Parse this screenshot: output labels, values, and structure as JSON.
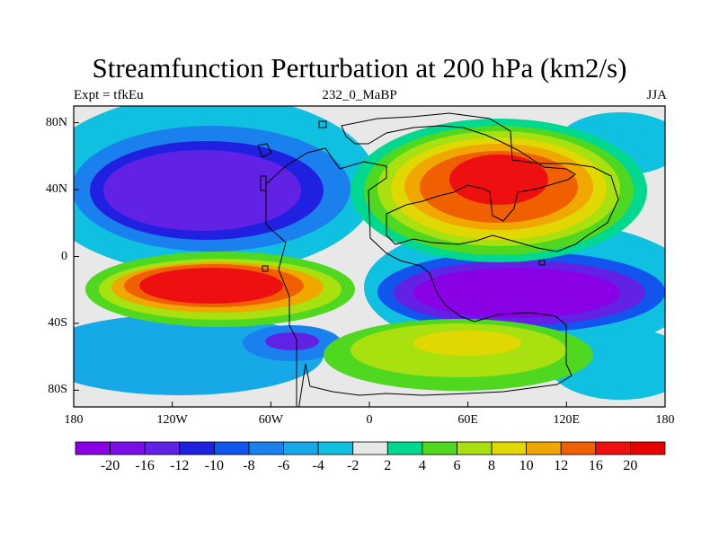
{
  "plot": {
    "title": "Streamfunction Perturbation at 200 hPa (km2/s)",
    "left_string": "Expt = tfkEu",
    "center_string": "232_0_MaBP",
    "right_string": "JJA"
  },
  "axes": {
    "y_ticks": [
      {
        "lat": 80,
        "label": "80N"
      },
      {
        "lat": 40,
        "label": "40N"
      },
      {
        "lat": 0,
        "label": "0"
      },
      {
        "lat": -40,
        "label": "40S"
      },
      {
        "lat": -80,
        "label": "80S"
      }
    ],
    "x_ticks": [
      {
        "lon": -180,
        "label": "180"
      },
      {
        "lon": -120,
        "label": "120W"
      },
      {
        "lon": -60,
        "label": "60W"
      },
      {
        "lon": 0,
        "label": "0"
      },
      {
        "lon": 60,
        "label": "60E"
      },
      {
        "lon": 120,
        "label": "120E"
      },
      {
        "lon": 180,
        "label": "180"
      }
    ],
    "lon_range": [
      -180,
      180
    ],
    "lat_range": [
      -90,
      90
    ]
  },
  "colorbar": {
    "labels": [
      "-20",
      "-16",
      "-12",
      "-10",
      "-8",
      "-6",
      "-4",
      "-2",
      "2",
      "4",
      "6",
      "8",
      "10",
      "12",
      "16",
      "20"
    ],
    "colors": [
      "#8a00e6",
      "#7a0ee8",
      "#6222e6",
      "#2020e0",
      "#1155ee",
      "#1a80ee",
      "#17a8e8",
      "#10c0e0",
      "#e8e8e8",
      "#00d890",
      "#50d820",
      "#a8e010",
      "#e0d800",
      "#f0a800",
      "#f06000",
      "#ee1010",
      "#e80000"
    ]
  },
  "map_data": {
    "centers": [
      {
        "lon": -98,
        "lat": 40,
        "value": -22,
        "description_color": "purple"
      },
      {
        "lon": 75,
        "lat": -20,
        "value": -22,
        "description_color": "purple"
      },
      {
        "lon": -95,
        "lat": -20,
        "value": 22,
        "description_color": "red"
      },
      {
        "lon": 80,
        "lat": 40,
        "value": 20,
        "description_color": "red"
      },
      {
        "lon": -45,
        "lat": -52,
        "value": -16,
        "description_color": "purple"
      },
      {
        "lon": 45,
        "lat": -55,
        "value": 9,
        "description_color": "yellow"
      }
    ]
  }
}
